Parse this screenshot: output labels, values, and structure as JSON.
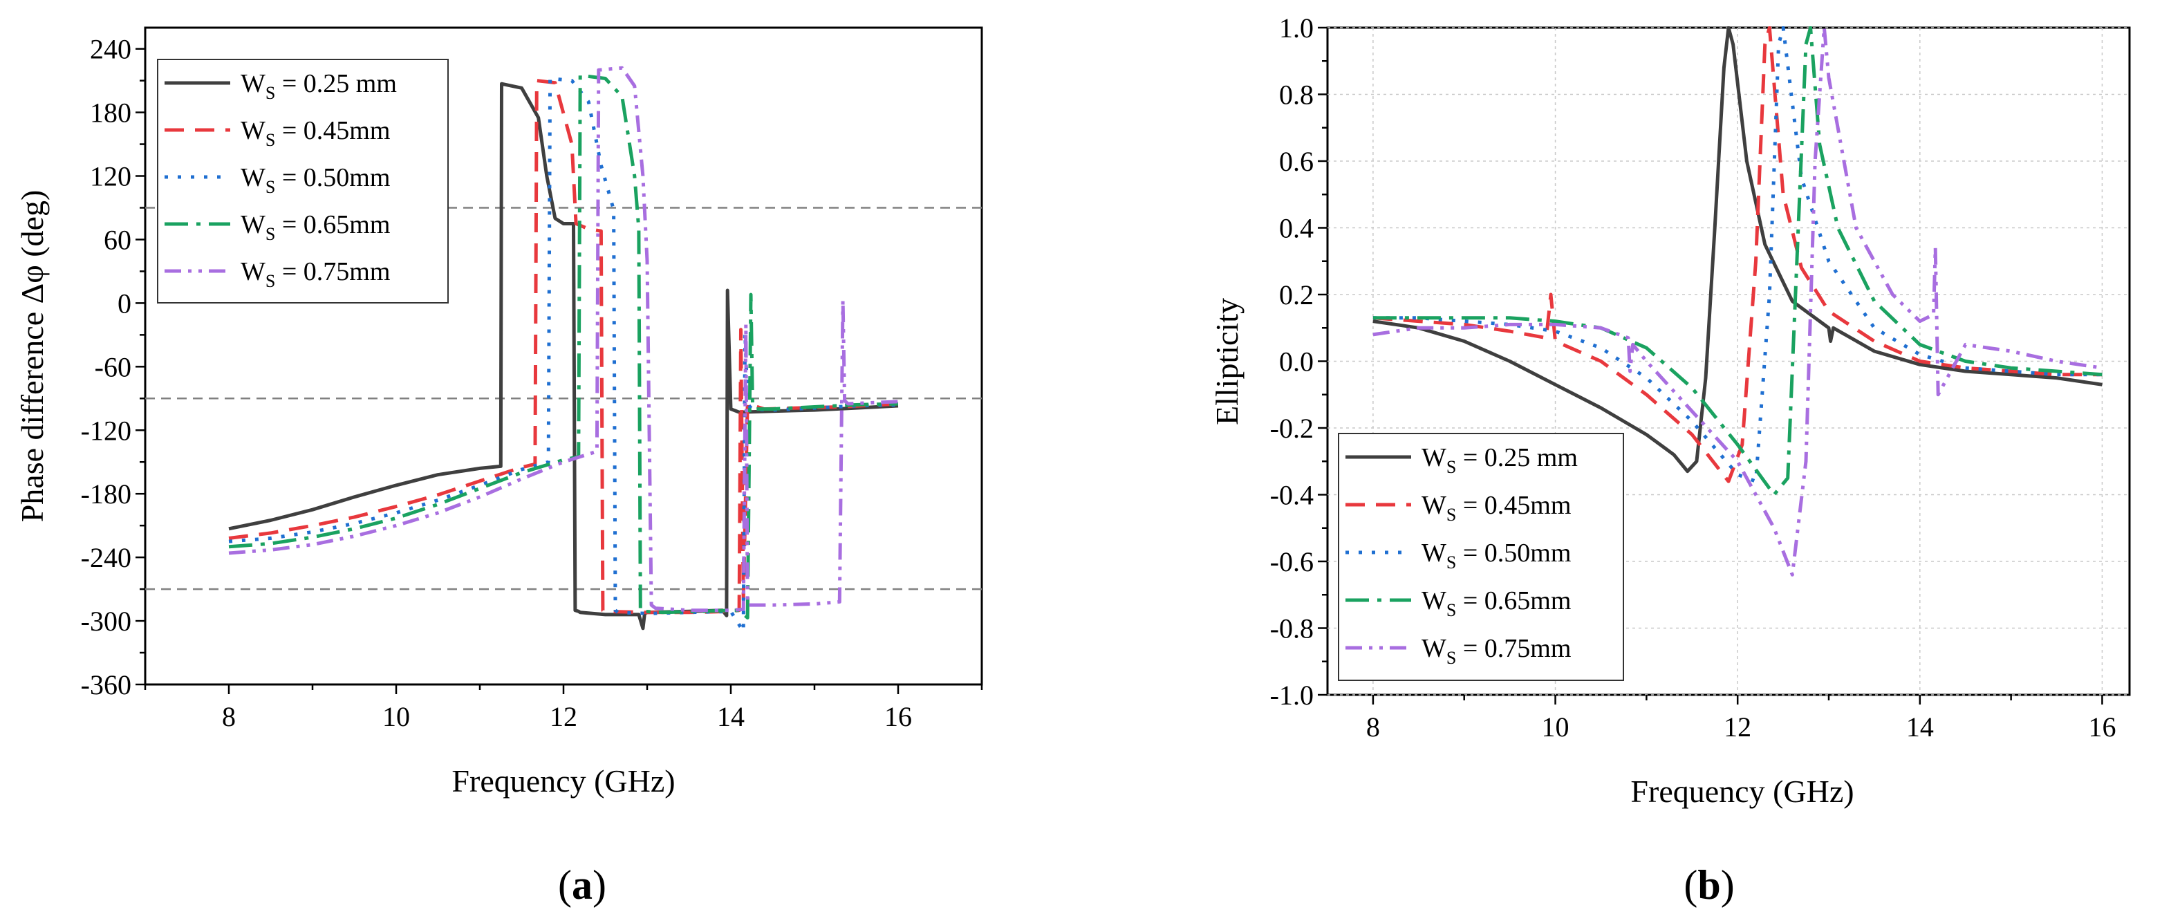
{
  "chart_data": [
    {
      "type": "line",
      "panel": "(a)",
      "caption_label": "a",
      "xlabel": "Frequency (GHz)",
      "ylabel": "Phase difference Δφ (deg)",
      "xlim": [
        7,
        17
      ],
      "ylim": [
        -360,
        260
      ],
      "xticks": [
        8,
        10,
        12,
        14,
        16
      ],
      "yticks": [
        -360,
        -300,
        -240,
        -180,
        -120,
        -60,
        0,
        60,
        120,
        180,
        240
      ],
      "ref_lines": [
        90,
        -90,
        -270
      ],
      "grid": false,
      "legend_position": "top-left",
      "series": [
        {
          "name": "W_S = 0.25 mm",
          "label_main": "W",
          "label_sub": "S",
          "label_rest": " = 0.25 mm",
          "color": "#3f3f3f",
          "dash": "solid",
          "x": [
            8.0,
            8.5,
            9.0,
            9.5,
            10.0,
            10.5,
            11.0,
            11.25,
            11.26,
            11.5,
            11.7,
            11.8,
            11.9,
            12.0,
            12.12,
            12.14,
            12.18,
            12.2,
            12.5,
            12.9,
            12.95,
            12.97,
            13.0,
            13.5,
            13.9,
            13.95,
            13.96,
            14.0,
            14.1,
            14.5,
            15.0,
            15.5,
            16.0
          ],
          "y": [
            -213,
            -205,
            -195,
            -183,
            -172,
            -162,
            -156,
            -154,
            207,
            203,
            175,
            120,
            80,
            75,
            75,
            -290,
            -291,
            -292,
            -294,
            -294,
            -307,
            -293,
            -292,
            -291,
            -290,
            -295,
            12,
            -100,
            -103,
            -102,
            -101,
            -99,
            -97
          ]
        },
        {
          "name": "W_S = 0.45mm",
          "label_main": "W",
          "label_sub": "S",
          "label_rest": " = 0.45mm",
          "color": "#e8383d",
          "dash": "28,16",
          "x": [
            8.0,
            8.5,
            9.0,
            9.5,
            10.0,
            10.5,
            11.0,
            11.5,
            11.66,
            11.68,
            11.9,
            12.1,
            12.15,
            12.3,
            12.45,
            12.47,
            12.5,
            13.0,
            13.5,
            14.0,
            14.1,
            14.12,
            14.15,
            14.2,
            14.4,
            14.8,
            15.3,
            15.8,
            16.0
          ],
          "y": [
            -222,
            -217,
            -210,
            -202,
            -192,
            -181,
            -168,
            -155,
            -152,
            210,
            208,
            150,
            75,
            70,
            68,
            -290,
            -291,
            -292,
            -292,
            -291,
            -290,
            -25,
            -280,
            -95,
            -100,
            -99,
            -98,
            -96,
            -95
          ]
        },
        {
          "name": "W_S = 0.50mm",
          "label_main": "W",
          "label_sub": "S",
          "label_rest": " = 0.50mm",
          "color": "#1f6fd1",
          "dash": "5,14",
          "x": [
            8.0,
            8.5,
            9.0,
            9.5,
            10.0,
            10.5,
            11.0,
            11.5,
            11.82,
            11.84,
            12.1,
            12.3,
            12.45,
            12.6,
            12.62,
            12.65,
            13.0,
            13.5,
            14.0,
            14.15,
            14.17,
            14.2,
            14.25,
            14.5,
            15.0,
            15.5,
            16.0
          ],
          "y": [
            -225,
            -222,
            -216,
            -208,
            -198,
            -186,
            -172,
            -157,
            -150,
            212,
            210,
            190,
            130,
            88,
            -290,
            -292,
            -293,
            -292,
            -291,
            -310,
            -28,
            -95,
            -100,
            -101,
            -99,
            -97,
            -96
          ]
        },
        {
          "name": "W_S = 0.65mm",
          "label_main": "W",
          "label_sub": "S",
          "label_rest": " = 0.65mm",
          "color": "#1aa260",
          "dash": "34,12,6,12",
          "x": [
            8.0,
            8.5,
            9.0,
            9.5,
            10.0,
            10.5,
            11.0,
            11.5,
            12.0,
            12.18,
            12.2,
            12.5,
            12.7,
            12.85,
            12.9,
            12.92,
            12.95,
            13.2,
            13.6,
            14.1,
            14.2,
            14.24,
            14.26,
            14.3,
            14.5,
            15.0,
            15.5,
            16.0
          ],
          "y": [
            -230,
            -227,
            -221,
            -213,
            -203,
            -190,
            -175,
            -160,
            -148,
            -145,
            215,
            212,
            195,
            120,
            70,
            -290,
            -291,
            -292,
            -291,
            -290,
            -297,
            8,
            -95,
            -100,
            -100,
            -98,
            -96,
            -95
          ]
        },
        {
          "name": "W_S = 0.75mm",
          "label_main": "W",
          "label_sub": "S",
          "label_rest": " = 0.75mm",
          "color": "#a86ee0",
          "dash": "24,10,5,10,5,10",
          "x": [
            8.0,
            8.5,
            9.0,
            9.5,
            10.0,
            10.5,
            11.0,
            11.5,
            12.0,
            12.4,
            12.42,
            12.7,
            12.85,
            12.95,
            13.0,
            13.05,
            13.1,
            13.5,
            14.0,
            14.15,
            14.18,
            14.2,
            14.5,
            15.0,
            15.3,
            15.34,
            15.36,
            15.4,
            15.7,
            16.0
          ],
          "y": [
            -236,
            -233,
            -228,
            -220,
            -210,
            -198,
            -183,
            -166,
            -150,
            -140,
            220,
            222,
            205,
            120,
            40,
            -285,
            -288,
            -290,
            -290,
            -289,
            -20,
            -285,
            -285,
            -284,
            -282,
            3,
            -92,
            -95,
            -94,
            -93
          ]
        }
      ]
    },
    {
      "type": "line",
      "panel": "(b)",
      "caption_label": "b",
      "xlabel": "Frequency (GHz)",
      "ylabel": "Ellipticity",
      "xlim": [
        7.5,
        16.3
      ],
      "ylim": [
        -1.0,
        1.0
      ],
      "xticks": [
        8,
        10,
        12,
        14,
        16
      ],
      "yticks": [
        -1.0,
        -0.8,
        -0.6,
        -0.4,
        -0.2,
        0.0,
        0.2,
        0.4,
        0.6,
        0.8,
        1.0
      ],
      "ytick_labels": [
        "-1.0",
        "-0.8",
        "-0.6",
        "-0.4",
        "-0.2",
        "0.0",
        "0.2",
        "0.4",
        "0.6",
        "0.8",
        "1.0"
      ],
      "grid": true,
      "legend_position": "bottom-left",
      "series": [
        {
          "name": "W_S = 0.25 mm",
          "label_main": "W",
          "label_sub": "S",
          "label_rest": " = 0.25 mm",
          "color": "#3f3f3f",
          "dash": "solid",
          "x": [
            8.0,
            8.5,
            9.0,
            9.5,
            10.0,
            10.5,
            11.0,
            11.3,
            11.45,
            11.55,
            11.65,
            11.75,
            11.85,
            11.9,
            11.95,
            12.1,
            12.3,
            12.6,
            13.0,
            13.02,
            13.05,
            13.5,
            14.0,
            14.5,
            15.0,
            15.5,
            16.0
          ],
          "y": [
            0.12,
            0.1,
            0.06,
            0.0,
            -0.07,
            -0.14,
            -0.22,
            -0.28,
            -0.33,
            -0.3,
            -0.05,
            0.4,
            0.88,
            1.0,
            0.95,
            0.6,
            0.35,
            0.18,
            0.1,
            0.06,
            0.1,
            0.03,
            -0.01,
            -0.03,
            -0.04,
            -0.05,
            -0.07
          ]
        },
        {
          "name": "W_S = 0.45mm",
          "label_main": "W",
          "label_sub": "S",
          "label_rest": " = 0.45mm",
          "color": "#e8383d",
          "dash": "28,16",
          "x": [
            8.0,
            8.5,
            9.0,
            9.5,
            9.9,
            9.95,
            10.0,
            10.5,
            11.0,
            11.5,
            11.9,
            12.05,
            12.2,
            12.3,
            12.35,
            12.5,
            12.7,
            13.0,
            13.5,
            14.0,
            14.5,
            15.0,
            15.5,
            16.0
          ],
          "y": [
            0.13,
            0.12,
            0.11,
            0.09,
            0.07,
            0.2,
            0.06,
            0.0,
            -0.1,
            -0.22,
            -0.36,
            -0.25,
            0.3,
            0.95,
            1.0,
            0.5,
            0.28,
            0.15,
            0.06,
            0.0,
            -0.02,
            -0.03,
            -0.04,
            -0.04
          ]
        },
        {
          "name": "W_S = 0.50mm",
          "label_main": "W",
          "label_sub": "S",
          "label_rest": " = 0.50mm",
          "color": "#1f6fd1",
          "dash": "5,14",
          "x": [
            8.0,
            8.5,
            9.0,
            9.5,
            10.0,
            10.5,
            11.0,
            11.5,
            12.0,
            12.2,
            12.35,
            12.45,
            12.5,
            12.7,
            13.0,
            13.5,
            14.0,
            14.5,
            15.0,
            15.5,
            16.0
          ],
          "y": [
            0.13,
            0.13,
            0.12,
            0.11,
            0.09,
            0.04,
            -0.05,
            -0.18,
            -0.34,
            -0.36,
            0.2,
            0.95,
            1.0,
            0.55,
            0.3,
            0.1,
            0.02,
            -0.02,
            -0.03,
            -0.04,
            -0.04
          ]
        },
        {
          "name": "W_S = 0.65mm",
          "label_main": "W",
          "label_sub": "S",
          "label_rest": " = 0.65mm",
          "color": "#1aa260",
          "dash": "34,12,6,12",
          "x": [
            8.0,
            8.5,
            9.0,
            9.5,
            10.0,
            10.5,
            11.0,
            11.5,
            12.0,
            12.4,
            12.55,
            12.65,
            12.75,
            12.8,
            12.9,
            13.1,
            13.5,
            14.0,
            14.5,
            15.0,
            15.5,
            16.0
          ],
          "y": [
            0.13,
            0.13,
            0.13,
            0.13,
            0.12,
            0.1,
            0.04,
            -0.08,
            -0.25,
            -0.4,
            -0.35,
            0.3,
            0.95,
            1.0,
            0.65,
            0.4,
            0.18,
            0.05,
            0.0,
            -0.02,
            -0.03,
            -0.04
          ]
        },
        {
          "name": "W_S = 0.75mm",
          "label_main": "W",
          "label_sub": "S",
          "label_rest": " = 0.75mm",
          "color": "#a86ee0",
          "dash": "24,10,5,10,5,10",
          "x": [
            8.0,
            8.5,
            9.0,
            9.5,
            10.0,
            10.5,
            10.8,
            10.82,
            10.85,
            11.0,
            11.5,
            12.0,
            12.4,
            12.6,
            12.75,
            12.85,
            12.95,
            13.0,
            13.3,
            13.7,
            14.0,
            14.15,
            14.17,
            14.2,
            14.5,
            15.0,
            15.5,
            16.0
          ],
          "y": [
            0.08,
            0.1,
            0.1,
            0.11,
            0.11,
            0.1,
            0.07,
            -0.03,
            0.05,
            0.0,
            -0.15,
            -0.3,
            -0.5,
            -0.64,
            -0.3,
            0.6,
            1.0,
            0.85,
            0.4,
            0.2,
            0.12,
            0.14,
            0.34,
            -0.1,
            0.05,
            0.03,
            0.0,
            -0.02
          ]
        }
      ]
    }
  ]
}
